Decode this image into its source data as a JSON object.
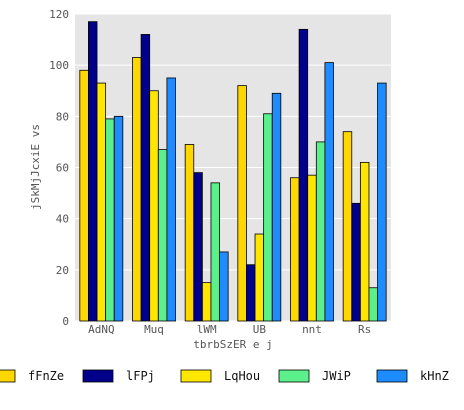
{
  "chart_data": {
    "type": "bar",
    "title": "",
    "xlabel": "tbrbSzER e j",
    "ylabel": "jSkMjJcxiE vs",
    "ylim": [
      0,
      120
    ],
    "yticks": [
      0,
      20,
      40,
      60,
      80,
      100,
      120
    ],
    "grid": true,
    "legend_position": "bottom",
    "categories": [
      "AdNQ",
      "Muq",
      "lWM",
      "UB",
      "nnt",
      "Rs"
    ],
    "series": [
      {
        "name": "fFnZe",
        "color": "#FFD700",
        "values": [
          98,
          103,
          69,
          92,
          56,
          74
        ]
      },
      {
        "name": "lFPj",
        "color": "#00008B",
        "values": [
          117,
          112,
          58,
          22,
          114,
          46
        ]
      },
      {
        "name": "LqHou",
        "color": "#FFE600",
        "values": [
          93,
          90,
          15,
          34,
          57,
          62
        ]
      },
      {
        "name": "JWiP",
        "color": "#5CF08C",
        "values": [
          79,
          67,
          54,
          81,
          70,
          13
        ]
      },
      {
        "name": "kHnZ",
        "color": "#1E8CFF",
        "values": [
          80,
          95,
          27,
          89,
          101,
          93
        ]
      }
    ]
  }
}
